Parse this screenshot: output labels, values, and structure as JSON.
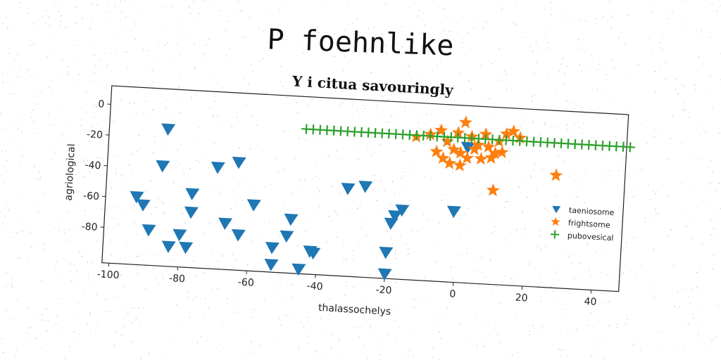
{
  "page": {
    "title": "P foehnlike"
  },
  "chart_data": {
    "type": "scatter",
    "title": "Y i citua savouringly",
    "xlabel": "thalassochelys",
    "ylabel": "agriological",
    "xlim": [
      -102,
      48
    ],
    "ylim": [
      -103,
      12
    ],
    "xticks": [
      -100,
      -80,
      -60,
      -40,
      -20,
      0,
      20,
      40
    ],
    "yticks": [
      0,
      -20,
      -40,
      -60,
      -80
    ],
    "legend_position": "right",
    "grid": false,
    "series": [
      {
        "name": "taeniosome",
        "marker": "triangle-down",
        "color": "#1f77b4",
        "points": [
          [
            -85,
            -14
          ],
          [
            -86,
            -38
          ],
          [
            -70,
            -37
          ],
          [
            -64,
            -33
          ],
          [
            -77,
            -55
          ],
          [
            -93,
            -59
          ],
          [
            -91,
            -64
          ],
          [
            -89,
            -80
          ],
          [
            -83,
            -90
          ],
          [
            -80,
            -82
          ],
          [
            -78,
            -90
          ],
          [
            -77,
            -67
          ],
          [
            -67,
            -73
          ],
          [
            -63,
            -80
          ],
          [
            -59,
            -60
          ],
          [
            -53,
            -87
          ],
          [
            -53,
            -98
          ],
          [
            -49,
            -79
          ],
          [
            -48,
            -68
          ],
          [
            -45,
            -100
          ],
          [
            -42,
            -88
          ],
          [
            -41,
            -89
          ],
          [
            -32,
            -46
          ],
          [
            -27,
            -44
          ],
          [
            -19,
            -67
          ],
          [
            -18,
            -62
          ],
          [
            -16,
            -58
          ],
          [
            -20,
            -86
          ],
          [
            -20,
            -100
          ],
          [
            -1,
            -57
          ],
          [
            2,
            -15
          ]
        ]
      },
      {
        "name": "frightsome",
        "marker": "star",
        "color": "#ff7f0e",
        "points": [
          [
            -13,
            -10
          ],
          [
            -6,
            -5
          ],
          [
            -4,
            -12
          ],
          [
            -1,
            -6
          ],
          [
            1,
            1
          ],
          [
            3,
            -8
          ],
          [
            5,
            -13
          ],
          [
            8,
            -14
          ],
          [
            10,
            -18
          ],
          [
            11,
            -10
          ],
          [
            13,
            -5
          ],
          [
            15,
            -3
          ],
          [
            17,
            -7
          ],
          [
            -2,
            -17
          ],
          [
            0,
            -19
          ],
          [
            2,
            -22
          ],
          [
            4,
            -16
          ],
          [
            6,
            -22
          ],
          [
            -5,
            -23
          ],
          [
            -3,
            -26
          ],
          [
            0,
            -27
          ],
          [
            -7,
            -19
          ],
          [
            9,
            -21
          ],
          [
            12,
            -17
          ],
          [
            7,
            -6
          ],
          [
            -9,
            -8
          ],
          [
            10,
            -42
          ],
          [
            28,
            -30
          ]
        ]
      },
      {
        "name": "pubovesical",
        "marker": "plus",
        "color": "#2ca02c",
        "x_start": -45,
        "x_end": 49,
        "x_step": 2,
        "y": -9
      }
    ]
  }
}
